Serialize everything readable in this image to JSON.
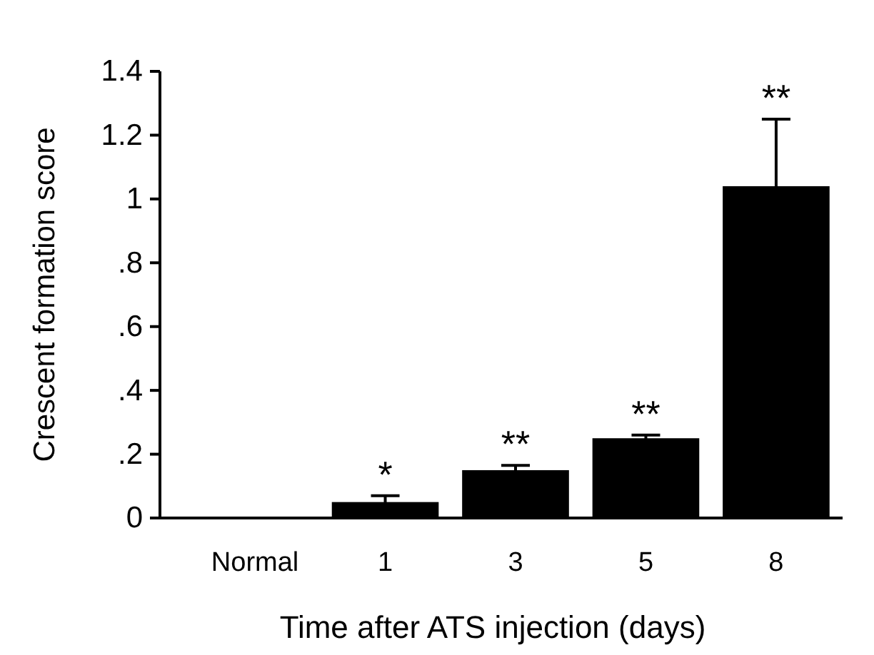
{
  "chart_data": {
    "type": "bar",
    "xlabel": "Time after ATS injection (days)",
    "ylabel": "Crescent formation score",
    "categories": [
      "Normal",
      "1",
      "3",
      "5",
      "8"
    ],
    "values": [
      0,
      0.05,
      0.15,
      0.25,
      1.04
    ],
    "errors": [
      null,
      0.02,
      0.015,
      0.01,
      0.21
    ],
    "color": "#000000",
    "ylim": [
      0,
      1.4
    ],
    "yticks": [
      0,
      {
        "value": 0.2,
        "label": ".2"
      },
      {
        "value": 0.4,
        "label": ".4"
      },
      {
        "value": 0.6,
        "label": ".6"
      },
      {
        "value": 0.8,
        "label": ".8"
      },
      1,
      1.2,
      1.4
    ],
    "annotations": [
      {
        "text": "*",
        "x": "1",
        "y": 0.07
      },
      {
        "text": "**",
        "x": "3",
        "y": 0.165
      },
      {
        "text": "**",
        "x": "5",
        "y": 0.26
      },
      {
        "text": "**",
        "x": "8",
        "y": 1.25
      }
    ]
  }
}
